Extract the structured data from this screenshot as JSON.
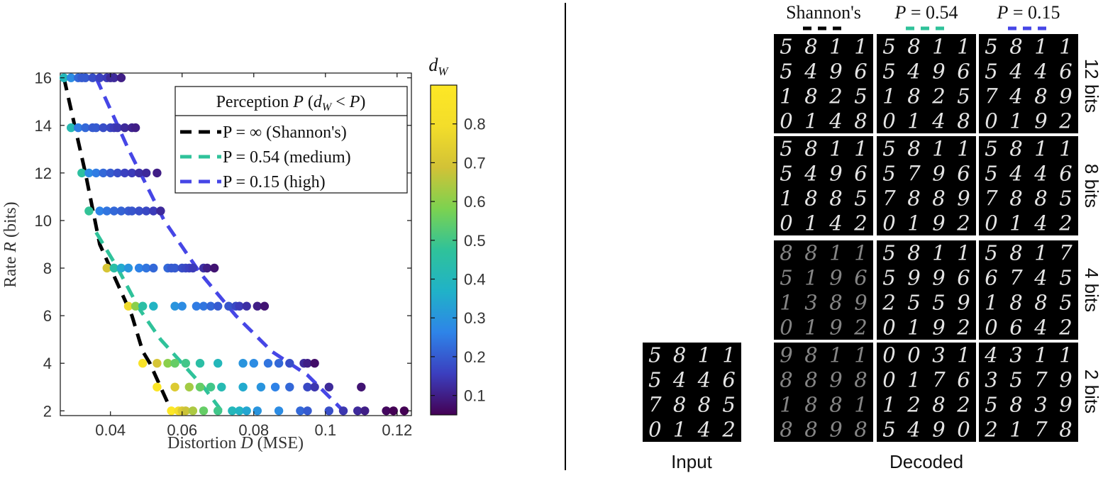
{
  "colors": {
    "shannon": "#000000",
    "medium": "#2fc29a",
    "high": "#4646e6",
    "frame": "#111111",
    "tick_text": "#333333",
    "divider": "#000000",
    "colormap": [
      "#440154",
      "#3b3fbf",
      "#2e84e8",
      "#20b2c8",
      "#2fc29a",
      "#7cd250",
      "#d2c236",
      "#f3dd2a",
      "#fde725"
    ]
  },
  "chart_data": [
    {
      "type": "scatter",
      "title": "",
      "xlabel": {
        "prefix": "Distortion ",
        "variable": "D",
        "suffix": " (MSE)"
      },
      "ylabel": {
        "prefix": "Rate ",
        "variable": "R",
        "suffix": " (bits)"
      },
      "xlim": [
        0.026,
        0.124
      ],
      "ylim": [
        1.8,
        16.2
      ],
      "xticks": [
        0.04,
        0.06,
        0.08,
        0.1,
        0.12
      ],
      "xtick_labels": [
        "0.04",
        "0.06",
        "0.08",
        "0.1",
        "0.12"
      ],
      "yticks": [
        2,
        4,
        6,
        8,
        10,
        12,
        14,
        16
      ],
      "ytick_labels": [
        "2",
        "4",
        "6",
        "8",
        "10",
        "12",
        "14",
        "16"
      ],
      "grid": false,
      "legend": {
        "placement": "top-right",
        "title": "Perception P (d_W < P)",
        "title_math": {
          "lead": "Perception ",
          "P": "P",
          "open": " (",
          "d": "d",
          "sub": "W",
          "lt": " < ",
          "P2": "P",
          "close": ")"
        },
        "entries": [
          "P = ∞ (Shannon's)",
          "P = 0.54 (medium)",
          "P = 0.15 (high)"
        ]
      },
      "colorbar": {
        "label": "d_W",
        "label_main": "d",
        "label_sub": "W",
        "range": [
          0.05,
          0.9
        ],
        "ticks": [
          0.1,
          0.2,
          0.3,
          0.4,
          0.5,
          0.6,
          0.7,
          0.8
        ],
        "tick_labels": [
          "0.1",
          "0.2",
          "0.3",
          "0.4",
          "0.5",
          "0.6",
          "0.7",
          "0.8"
        ]
      },
      "series": [
        {
          "name": "P = ∞ (Shannon's)",
          "kind": "dashed-line",
          "color": "#000000",
          "x": [
            0.027,
            0.03,
            0.033,
            0.035,
            0.037,
            0.04,
            0.043,
            0.046,
            0.049,
            0.051,
            0.054,
            0.057
          ],
          "y": [
            16,
            14,
            12,
            10.5,
            9,
            8,
            7,
            6,
            4.5,
            4,
            3,
            2
          ]
        },
        {
          "name": "P = 0.54 (medium)",
          "kind": "dashed-line",
          "color": "#2fc29a",
          "x": [
            0.036,
            0.042,
            0.048,
            0.054,
            0.06,
            0.066,
            0.071
          ],
          "y": [
            9.5,
            8,
            6.3,
            5,
            4,
            3,
            2
          ]
        },
        {
          "name": "P = 0.15 (high)",
          "kind": "dashed-line",
          "color": "#4646e6",
          "x": [
            0.036,
            0.045,
            0.055,
            0.065,
            0.075,
            0.085,
            0.095,
            0.105
          ],
          "y": [
            16,
            13,
            10,
            7.8,
            6,
            4.5,
            3.5,
            2
          ]
        },
        {
          "name": "",
          "kind": "points",
          "points": [
            [
              0.027,
              16,
              0.4
            ],
            [
              0.029,
              16,
              0.28
            ],
            [
              0.031,
              16,
              0.22
            ],
            [
              0.032,
              16,
              0.2
            ],
            [
              0.033,
              16,
              0.2
            ],
            [
              0.035,
              16,
              0.18
            ],
            [
              0.037,
              16,
              0.16
            ],
            [
              0.039,
              16,
              0.15
            ],
            [
              0.04,
              16,
              0.12
            ],
            [
              0.041,
              16,
              0.12
            ],
            [
              0.043,
              16,
              0.1
            ],
            [
              0.029,
              13.9,
              0.42
            ],
            [
              0.031,
              13.9,
              0.25
            ],
            [
              0.033,
              13.9,
              0.22
            ],
            [
              0.035,
              13.9,
              0.2
            ],
            [
              0.036,
              13.9,
              0.2
            ],
            [
              0.038,
              13.9,
              0.18
            ],
            [
              0.04,
              13.9,
              0.17
            ],
            [
              0.041,
              13.9,
              0.15
            ],
            [
              0.042,
              13.9,
              0.14
            ],
            [
              0.044,
              13.9,
              0.12
            ],
            [
              0.046,
              13.9,
              0.11
            ],
            [
              0.047,
              13.9,
              0.1
            ],
            [
              0.032,
              12,
              0.46
            ],
            [
              0.034,
              12,
              0.28
            ],
            [
              0.036,
              12,
              0.25
            ],
            [
              0.038,
              12,
              0.22
            ],
            [
              0.04,
              12,
              0.2
            ],
            [
              0.042,
              12,
              0.18
            ],
            [
              0.044,
              12,
              0.16
            ],
            [
              0.046,
              12,
              0.15
            ],
            [
              0.048,
              12,
              0.13
            ],
            [
              0.05,
              12,
              0.12
            ],
            [
              0.053,
              12,
              0.1
            ],
            [
              0.034,
              10.4,
              0.48
            ],
            [
              0.037,
              10.4,
              0.26
            ],
            [
              0.039,
              10.4,
              0.24
            ],
            [
              0.041,
              10.4,
              0.22
            ],
            [
              0.043,
              10.4,
              0.21
            ],
            [
              0.045,
              10.4,
              0.2
            ],
            [
              0.046,
              10.4,
              0.19
            ],
            [
              0.048,
              10.4,
              0.18
            ],
            [
              0.05,
              10.4,
              0.17
            ],
            [
              0.052,
              10.4,
              0.15
            ],
            [
              0.054,
              10.4,
              0.12
            ],
            [
              0.039,
              8,
              0.7
            ],
            [
              0.041,
              8,
              0.45
            ],
            [
              0.043,
              8,
              0.35
            ],
            [
              0.045,
              8,
              0.3
            ],
            [
              0.048,
              8,
              0.26
            ],
            [
              0.05,
              8,
              0.24
            ],
            [
              0.052,
              8,
              0.22
            ],
            [
              0.056,
              8,
              0.22
            ],
            [
              0.057,
              8,
              0.2
            ],
            [
              0.058,
              8,
              0.2
            ],
            [
              0.06,
              8,
              0.18
            ],
            [
              0.061,
              8,
              0.17
            ],
            [
              0.062,
              8,
              0.16
            ],
            [
              0.063,
              8,
              0.15
            ],
            [
              0.066,
              8,
              0.13
            ],
            [
              0.067,
              8,
              0.1
            ],
            [
              0.069,
              8,
              0.08
            ],
            [
              0.045,
              6.4,
              0.78
            ],
            [
              0.047,
              6.4,
              0.6
            ],
            [
              0.049,
              6.4,
              0.45
            ],
            [
              0.052,
              6.4,
              0.38
            ],
            [
              0.058,
              6.4,
              0.3
            ],
            [
              0.06,
              6.4,
              0.28
            ],
            [
              0.064,
              6.4,
              0.25
            ],
            [
              0.066,
              6.4,
              0.24
            ],
            [
              0.068,
              6.4,
              0.22
            ],
            [
              0.07,
              6.4,
              0.2
            ],
            [
              0.073,
              6.4,
              0.19
            ],
            [
              0.075,
              6.4,
              0.17
            ],
            [
              0.076,
              6.4,
              0.15
            ],
            [
              0.078,
              6.4,
              0.13
            ],
            [
              0.081,
              6.4,
              0.1
            ],
            [
              0.083,
              6.4,
              0.08
            ],
            [
              0.049,
              4,
              0.85
            ],
            [
              0.053,
              4,
              0.7
            ],
            [
              0.056,
              4,
              0.6
            ],
            [
              0.058,
              4,
              0.55
            ],
            [
              0.061,
              4,
              0.5
            ],
            [
              0.065,
              4,
              0.45
            ],
            [
              0.07,
              4,
              0.4
            ],
            [
              0.077,
              4,
              0.3
            ],
            [
              0.08,
              4,
              0.28
            ],
            [
              0.084,
              4,
              0.24
            ],
            [
              0.087,
              4,
              0.22
            ],
            [
              0.09,
              4,
              0.18
            ],
            [
              0.094,
              4,
              0.12
            ],
            [
              0.095,
              4,
              0.1
            ],
            [
              0.097,
              4,
              0.07
            ],
            [
              0.053,
              3,
              0.88
            ],
            [
              0.058,
              3,
              0.72
            ],
            [
              0.062,
              3,
              0.63
            ],
            [
              0.065,
              3,
              0.55
            ],
            [
              0.068,
              3,
              0.5
            ],
            [
              0.071,
              3,
              0.42
            ],
            [
              0.077,
              3,
              0.35
            ],
            [
              0.082,
              3,
              0.3
            ],
            [
              0.086,
              3,
              0.26
            ],
            [
              0.09,
              3,
              0.22
            ],
            [
              0.095,
              3,
              0.17
            ],
            [
              0.097,
              3,
              0.14
            ],
            [
              0.101,
              3,
              0.12
            ],
            [
              0.11,
              3,
              0.08
            ],
            [
              0.057,
              2,
              0.9
            ],
            [
              0.059,
              2,
              0.8
            ],
            [
              0.06,
              2,
              0.72
            ],
            [
              0.061,
              2,
              0.68
            ],
            [
              0.063,
              2,
              0.64
            ],
            [
              0.066,
              2,
              0.55
            ],
            [
              0.07,
              2,
              0.5
            ],
            [
              0.074,
              2,
              0.4
            ],
            [
              0.076,
              2,
              0.38
            ],
            [
              0.078,
              2,
              0.34
            ],
            [
              0.081,
              2,
              0.3
            ],
            [
              0.087,
              2,
              0.28
            ],
            [
              0.093,
              2,
              0.22
            ],
            [
              0.095,
              2,
              0.2
            ],
            [
              0.101,
              2,
              0.18
            ],
            [
              0.105,
              2,
              0.14
            ],
            [
              0.109,
              2,
              0.12
            ],
            [
              0.111,
              2,
              0.1
            ],
            [
              0.117,
              2,
              0.06
            ],
            [
              0.119,
              2,
              0.05
            ],
            [
              0.122,
              2,
              0.05
            ]
          ]
        }
      ]
    }
  ],
  "right_panel": {
    "column_headers": [
      "Shannon's",
      "P = 0.54",
      "P = 0.15"
    ],
    "column_header_parts": [
      {
        "text": "Shannon's"
      },
      {
        "var": "P",
        "rest": " = 0.54"
      },
      {
        "var": "P",
        "rest": " = 0.15"
      }
    ],
    "row_labels": [
      "12 bits",
      "8 bits",
      "4 bits",
      "2 bits"
    ],
    "input_label": "Input",
    "decoded_label": "Decoded",
    "input_grid": [
      "5",
      "8",
      "1",
      "1",
      "5",
      "4",
      "4",
      "6",
      "7",
      "8",
      "8",
      "5",
      "0",
      "1",
      "4",
      "2"
    ],
    "grids": [
      [
        [
          "5",
          "8",
          "1",
          "1",
          "5",
          "4",
          "9",
          "6",
          "1",
          "8",
          "2",
          "5",
          "0",
          "1",
          "4",
          "8"
        ],
        [
          "5",
          "8",
          "1",
          "1",
          "5",
          "4",
          "9",
          "6",
          "1",
          "8",
          "2",
          "5",
          "0",
          "1",
          "4",
          "8"
        ],
        [
          "5",
          "8",
          "1",
          "1",
          "5",
          "4",
          "4",
          "6",
          "7",
          "4",
          "8",
          "9",
          "0",
          "1",
          "9",
          "2"
        ]
      ],
      [
        [
          "5",
          "8",
          "1",
          "1",
          "5",
          "4",
          "9",
          "6",
          "1",
          "8",
          "8",
          "5",
          "0",
          "1",
          "4",
          "2"
        ],
        [
          "5",
          "8",
          "1",
          "1",
          "5",
          "7",
          "9",
          "6",
          "7",
          "8",
          "8",
          "9",
          "0",
          "1",
          "9",
          "2"
        ],
        [
          "5",
          "8",
          "1",
          "1",
          "5",
          "4",
          "4",
          "6",
          "7",
          "8",
          "8",
          "5",
          "0",
          "1",
          "4",
          "2"
        ]
      ],
      [
        [
          "8",
          "8",
          "1",
          "1",
          "5",
          "1",
          "9",
          "6",
          "1",
          "3",
          "8",
          "9",
          "0",
          "1",
          "9",
          "2"
        ],
        [
          "5",
          "8",
          "1",
          "1",
          "5",
          "9",
          "9",
          "6",
          "2",
          "5",
          "5",
          "9",
          "0",
          "1",
          "9",
          "2"
        ],
        [
          "5",
          "8",
          "1",
          "7",
          "6",
          "7",
          "4",
          "5",
          "1",
          "8",
          "8",
          "5",
          "0",
          "6",
          "4",
          "2"
        ]
      ],
      [
        [
          "9",
          "8",
          "1",
          "1",
          "8",
          "8",
          "9",
          "8",
          "1",
          "8",
          "8",
          "1",
          "8",
          "8",
          "9",
          "8"
        ],
        [
          "0",
          "0",
          "3",
          "1",
          "0",
          "1",
          "7",
          "6",
          "1",
          "2",
          "8",
          "2",
          "5",
          "4",
          "9",
          "0"
        ],
        [
          "4",
          "3",
          "1",
          "1",
          "3",
          "5",
          "7",
          "9",
          "5",
          "8",
          "3",
          "9",
          "2",
          "1",
          "7",
          "8"
        ]
      ]
    ]
  }
}
